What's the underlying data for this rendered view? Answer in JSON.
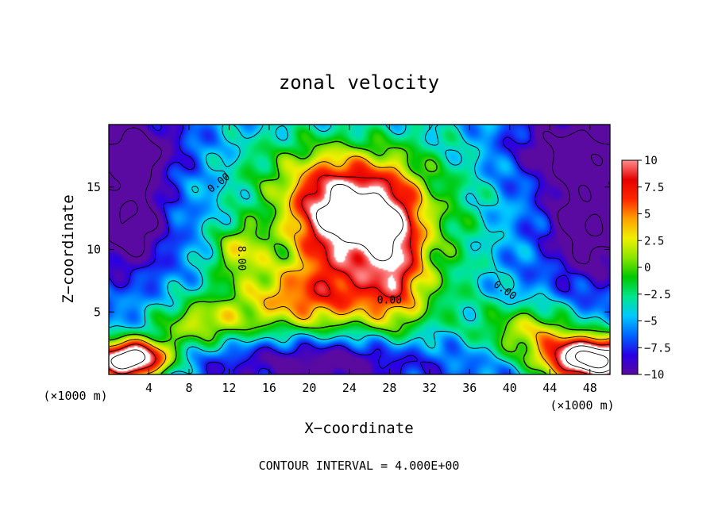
{
  "chart_data": {
    "type": "heatmap",
    "title": "zonal velocity",
    "xlabel": "X−coordinate",
    "ylabel": "Z−coordinate",
    "x_unit_label": "(×1000 m)",
    "y_unit_label": "(×1000 m)",
    "footer": "CONTOUR INTERVAL = 4.000E+00",
    "xlim": [
      0,
      50
    ],
    "ylim": [
      0,
      20
    ],
    "x_ticks": [
      4,
      8,
      12,
      16,
      20,
      24,
      28,
      32,
      36,
      40,
      44,
      48
    ],
    "y_ticks": [
      5,
      10,
      15
    ],
    "colorbar": {
      "min": -10,
      "max": 10,
      "ticks": [
        10,
        7.5,
        5,
        2.5,
        0,
        -2.5,
        -5,
        -7.5,
        -10
      ],
      "tick_labels": [
        "10",
        "7.5",
        "5",
        "2.5",
        "0",
        "−2.5",
        "−5",
        "−7.5",
        "−10"
      ],
      "colormap": [
        "#5a0aa0",
        "#2800e6",
        "#0064ff",
        "#00c8ff",
        "#00e68c",
        "#00c800",
        "#8ce600",
        "#f0f000",
        "#ffa000",
        "#ff2800",
        "#e60000",
        "#ff8c8c",
        "#ffffff"
      ]
    },
    "contour_labels": [
      {
        "text": "0.00",
        "x": 11.0,
        "y": 15.3,
        "angle": -38
      },
      {
        "text": "8.00",
        "x": 13.2,
        "y": 9.3,
        "angle": 90
      },
      {
        "text": "0.00",
        "x": 28.0,
        "y": 5.9,
        "angle": 0
      },
      {
        "text": "0.00",
        "x": 39.5,
        "y": 6.7,
        "angle": 35
      }
    ],
    "features": [
      {
        "name": "upper-level jet core",
        "x": 23.5,
        "y": 13.0,
        "value": 14
      },
      {
        "name": "surface westward core",
        "x": 21,
        "y": 1.0,
        "value": -10
      },
      {
        "name": "upper-left westward core",
        "x": 2,
        "y": 12.5,
        "value": -14
      },
      {
        "name": "upper-right westward core",
        "x": 48,
        "y": 12.5,
        "value": -14
      },
      {
        "name": "lower-left eastward core",
        "x": 2,
        "y": 1.2,
        "value": 14
      },
      {
        "name": "lower-right eastward core",
        "x": 48.5,
        "y": 1.2,
        "value": 14
      }
    ]
  }
}
